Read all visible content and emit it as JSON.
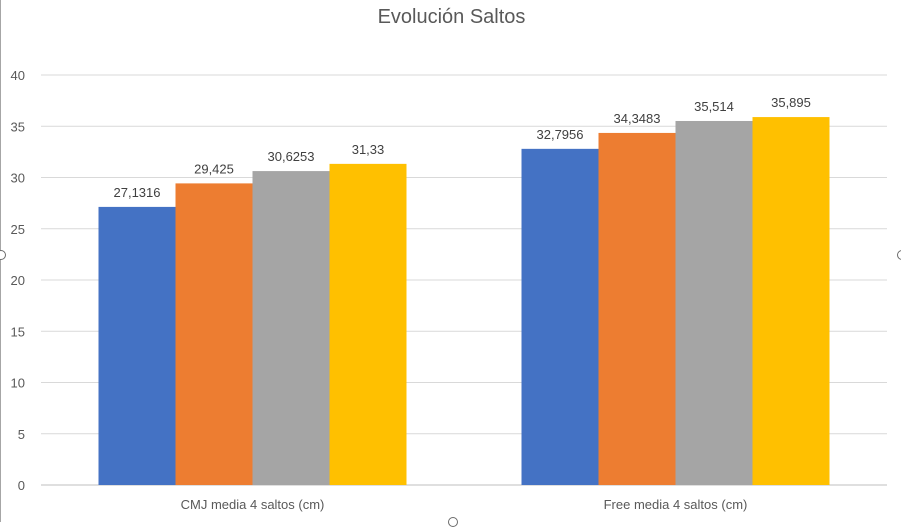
{
  "chart_data": {
    "type": "bar",
    "title": "Evolución Saltos",
    "xlabel": "",
    "ylabel": "",
    "ylim": [
      0,
      40
    ],
    "y_ticks": [
      "0",
      "5",
      "10",
      "15",
      "20",
      "25",
      "30",
      "35",
      "40"
    ],
    "y_tick_values": [
      0,
      5,
      10,
      15,
      20,
      25,
      30,
      35,
      40
    ],
    "categories": [
      "CMJ media 4 saltos (cm)",
      "Free media 4 saltos (cm)"
    ],
    "grid": true,
    "legend": "none",
    "series": [
      {
        "color": "#4472c4",
        "values": [
          27.1316,
          32.7956
        ],
        "labels": [
          "27,1316",
          "32,7956"
        ]
      },
      {
        "color": "#ed7d31",
        "values": [
          29.425,
          34.3483
        ],
        "labels": [
          "29,425",
          "34,3483"
        ]
      },
      {
        "color": "#a5a5a5",
        "values": [
          30.6253,
          35.514
        ],
        "labels": [
          "30,6253",
          "35,514"
        ]
      },
      {
        "color": "#ffc000",
        "values": [
          31.33,
          35.895
        ],
        "labels": [
          "31,33",
          "35,895"
        ]
      }
    ]
  }
}
